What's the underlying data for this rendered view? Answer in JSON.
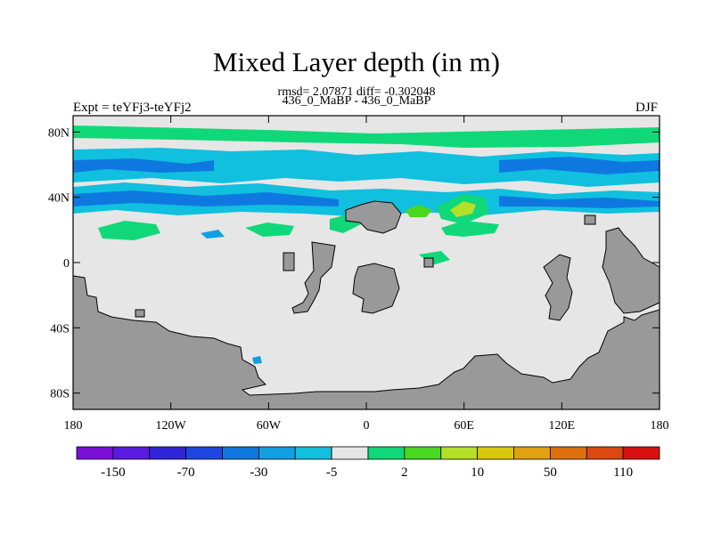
{
  "header": {
    "title": "Mixed Layer depth (in m)",
    "stats": "rmsd= 2.07871 diff= -0.302048",
    "runs": "436_0_MaBP - 436_0_MaBP",
    "expt": "Expt = teYFj3-teYFj2",
    "season": "DJF"
  },
  "chart_data": {
    "type": "map",
    "title": "Mixed Layer depth (in m)",
    "lon_range": [
      -180,
      180
    ],
    "lat_range": [
      -90,
      90
    ],
    "x_ticks": [
      {
        "lon": -180,
        "label": "180"
      },
      {
        "lon": -120,
        "label": "120W"
      },
      {
        "lon": -60,
        "label": "60W"
      },
      {
        "lon": 0,
        "label": "0"
      },
      {
        "lon": 60,
        "label": "60E"
      },
      {
        "lon": 120,
        "label": "120E"
      },
      {
        "lon": 180,
        "label": "180"
      }
    ],
    "y_ticks": [
      {
        "lat": 80,
        "label": "80N"
      },
      {
        "lat": 40,
        "label": "40N"
      },
      {
        "lat": 0,
        "label": "0"
      },
      {
        "lat": -40,
        "label": "40S"
      },
      {
        "lat": -80,
        "label": "80S"
      }
    ],
    "colorbar": {
      "colors": [
        "#7a10d8",
        "#5a1be0",
        "#3024d8",
        "#1e46e2",
        "#0f78e0",
        "#10a0e2",
        "#10c0de",
        "#e6e6e6",
        "#10d878",
        "#48d820",
        "#b4e028",
        "#d8c80c",
        "#e0a010",
        "#e0700c",
        "#dc4810",
        "#d81010"
      ],
      "labels": [
        {
          "index": 1,
          "label": "-150"
        },
        {
          "index": 3,
          "label": "-70"
        },
        {
          "index": 5,
          "label": "-30"
        },
        {
          "index": 7,
          "label": "-5"
        },
        {
          "index": 9,
          "label": "2"
        },
        {
          "index": 11,
          "label": "10"
        },
        {
          "index": 13,
          "label": "50"
        },
        {
          "index": 15,
          "label": "110"
        }
      ]
    }
  }
}
